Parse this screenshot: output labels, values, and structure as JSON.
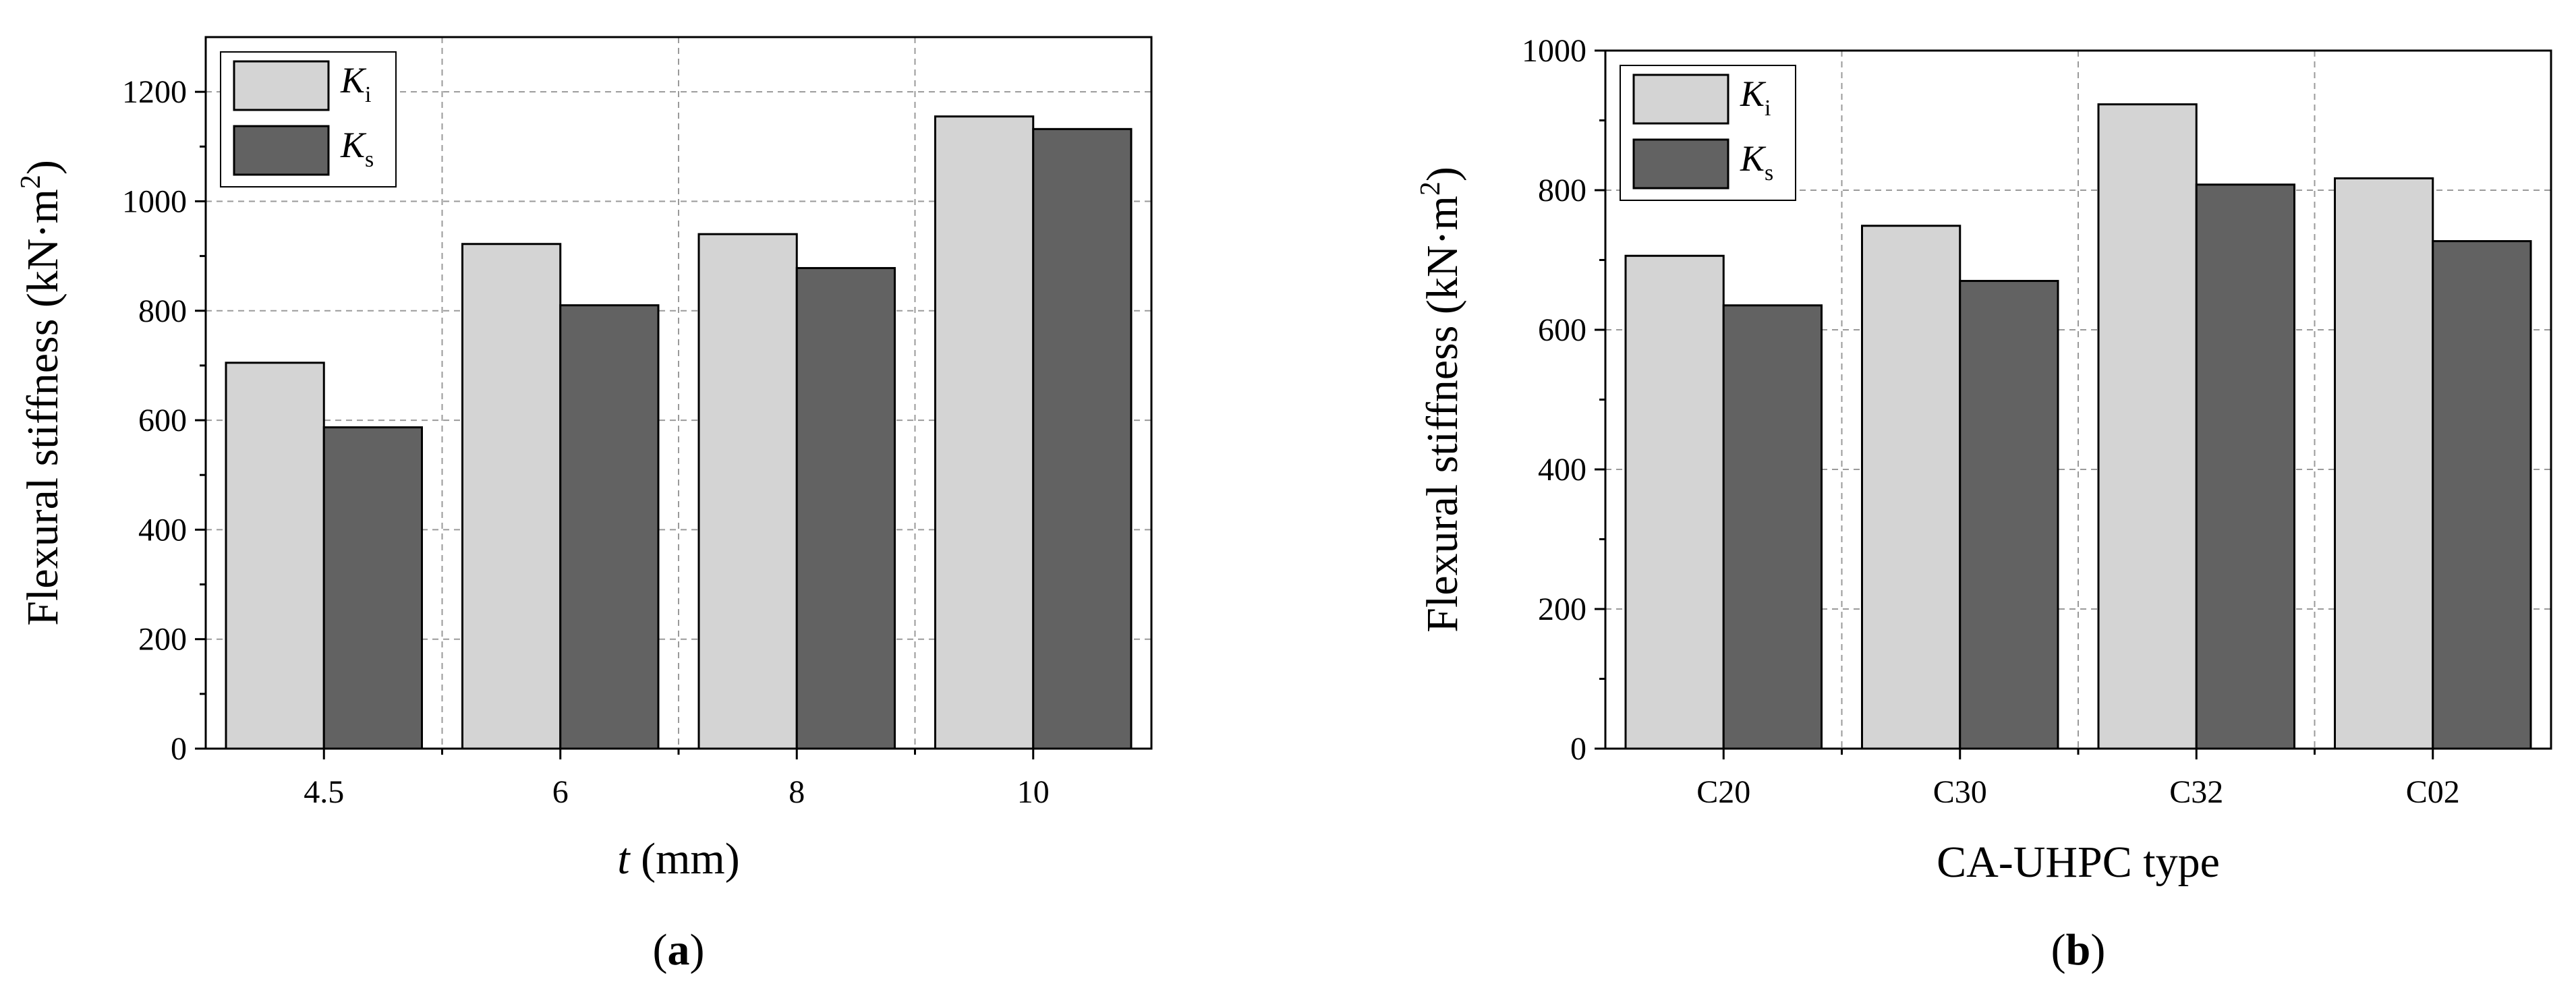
{
  "colors": {
    "Ki": "#d4d4d4",
    "Ks": "#626262"
  },
  "chart_data": [
    {
      "id": "a",
      "type": "bar",
      "panel_label": "a",
      "xlabel_italic": "t",
      "xlabel_rest": " (mm)",
      "ylabel": "Flexural stiffness (kN·m",
      "ylabel_sup": "2",
      "ylabel_close": ")",
      "ylim": [
        0,
        1300
      ],
      "yticks": [
        0,
        200,
        400,
        600,
        800,
        1000,
        1200
      ],
      "categories": [
        "4.5",
        "6",
        "8",
        "10"
      ],
      "grid": true,
      "legend_position": "top-left",
      "series": [
        {
          "name": "K",
          "sub": "i",
          "color_key": "Ki",
          "values": [
            705,
            922,
            940,
            1155
          ]
        },
        {
          "name": "K",
          "sub": "s",
          "color_key": "Ks",
          "values": [
            587,
            810,
            878,
            1132
          ]
        }
      ]
    },
    {
      "id": "b",
      "type": "bar",
      "panel_label": "b",
      "xlabel_italic": "",
      "xlabel_rest": "CA-UHPC type",
      "ylabel": "Flexural stiffness (kN·m",
      "ylabel_sup": "2",
      "ylabel_close": ")",
      "ylim": [
        0,
        1000
      ],
      "yticks": [
        0,
        200,
        400,
        600,
        800,
        1000
      ],
      "categories": [
        "C20",
        "C30",
        "C32",
        "C02"
      ],
      "grid": true,
      "legend_position": "top-left",
      "series": [
        {
          "name": "K",
          "sub": "i",
          "color_key": "Ki",
          "values": [
            706,
            749,
            923,
            817
          ]
        },
        {
          "name": "K",
          "sub": "s",
          "color_key": "Ks",
          "values": [
            635,
            670,
            808,
            727
          ]
        }
      ]
    }
  ]
}
